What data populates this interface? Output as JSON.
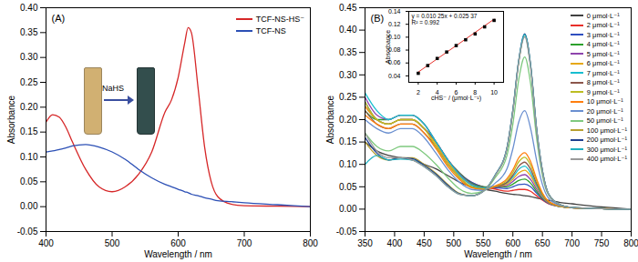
{
  "chart_data": [
    {
      "type": "line",
      "title": "(A)",
      "x_label": "Wavelength / nm",
      "y_label": "Absorbance",
      "xlim": [
        400,
        800
      ],
      "xticks": [
        400,
        500,
        600,
        700,
        800
      ],
      "ylim": [
        -0.05,
        0.4
      ],
      "yticks": [
        -0.05,
        {
          "value": 0,
          "label": "0.00"
        },
        0.05,
        {
          "value": 0.1,
          "label": "0.10"
        },
        0.15,
        {
          "value": 0.2,
          "label": "0.20"
        },
        0.25,
        {
          "value": 0.3,
          "label": "0.30"
        },
        0.35,
        {
          "value": 0.4,
          "label": "0.40"
        }
      ],
      "legend": "top-right",
      "grid": false,
      "annotations": [
        "NaHS"
      ],
      "x": [
        400,
        410,
        420,
        430,
        440,
        460,
        480,
        500,
        520,
        540,
        560,
        580,
        590,
        600,
        610,
        615,
        620,
        630,
        640,
        650,
        660,
        680,
        700,
        750,
        800
      ],
      "series": [
        {
          "name": "TCF-NS-HS⁻",
          "color": "#d62728",
          "values": [
            0.17,
            0.185,
            0.18,
            0.16,
            0.13,
            0.075,
            0.04,
            0.03,
            0.04,
            0.065,
            0.11,
            0.19,
            0.215,
            0.26,
            0.33,
            0.36,
            0.35,
            0.24,
            0.12,
            0.05,
            0.02,
            0.005,
            0.002,
            0.001,
            0
          ]
        },
        {
          "name": "TCF-NS",
          "color": "#2b4fb5",
          "values": [
            0.11,
            0.112,
            0.115,
            0.118,
            0.122,
            0.125,
            0.12,
            0.11,
            0.095,
            0.075,
            0.058,
            0.045,
            0.04,
            0.035,
            0.03,
            0.028,
            0.025,
            0.022,
            0.018,
            0.015,
            0.012,
            0.01,
            0.008,
            0.004,
            0
          ]
        }
      ]
    },
    {
      "type": "line",
      "title": "(B)",
      "x_label": "Wavelength / nm",
      "y_label": "Absorbance",
      "xlim": [
        350,
        800
      ],
      "xticks": [
        350,
        400,
        450,
        500,
        550,
        600,
        650,
        700,
        750,
        800
      ],
      "ylim": [
        -0.05,
        0.45
      ],
      "yticks": [
        -0.05,
        {
          "value": 0,
          "label": "0.00"
        },
        0.05,
        {
          "value": 0.1,
          "label": "0.10"
        },
        0.15,
        {
          "value": 0.2,
          "label": "0.20"
        },
        0.25,
        {
          "value": 0.3,
          "label": "0.30"
        },
        0.35,
        {
          "value": 0.4,
          "label": "0.40"
        },
        0.45
      ],
      "legend": "top-right",
      "grid": false,
      "x": [
        350,
        370,
        390,
        410,
        430,
        450,
        470,
        490,
        510,
        530,
        550,
        570,
        590,
        600,
        610,
        620,
        630,
        640,
        650,
        660,
        680,
        700,
        750,
        800
      ],
      "series": [
        {
          "name": "0 μmol·L⁻¹",
          "color": "#404040",
          "values": [
            0.15,
            0.13,
            0.12,
            0.115,
            0.11,
            0.1,
            0.09,
            0.075,
            0.06,
            0.05,
            0.045,
            0.04,
            0.035,
            0.033,
            0.032,
            0.03,
            0.028,
            0.025,
            0.022,
            0.02,
            0.015,
            0.012,
            0.005,
            0
          ]
        },
        {
          "name": "2 μmol·L⁻¹",
          "color": "#e8302a",
          "values": [
            0.23,
            0.2,
            0.19,
            0.2,
            0.2,
            0.18,
            0.15,
            0.11,
            0.08,
            0.06,
            0.05,
            0.045,
            0.04,
            0.042,
            0.044,
            0.044,
            0.04,
            0.03,
            0.02,
            0.012,
            0.006,
            0.003,
            0.001,
            0
          ]
        },
        {
          "name": "3 μmol·L⁻¹",
          "color": "#2f4fbf",
          "values": [
            0.24,
            0.2,
            0.19,
            0.2,
            0.2,
            0.18,
            0.15,
            0.11,
            0.08,
            0.06,
            0.05,
            0.048,
            0.046,
            0.05,
            0.055,
            0.056,
            0.05,
            0.036,
            0.022,
            0.013,
            0.006,
            0.003,
            0.001,
            0
          ]
        },
        {
          "name": "4 μmol·L⁻¹",
          "color": "#2ca02c",
          "values": [
            0.22,
            0.2,
            0.2,
            0.21,
            0.21,
            0.19,
            0.15,
            0.11,
            0.08,
            0.058,
            0.05,
            0.05,
            0.05,
            0.056,
            0.064,
            0.067,
            0.058,
            0.04,
            0.024,
            0.014,
            0.006,
            0.003,
            0.001,
            0
          ]
        },
        {
          "name": "5 μmol·L⁻¹",
          "color": "#8e44ad",
          "values": [
            0.25,
            0.21,
            0.2,
            0.21,
            0.21,
            0.19,
            0.15,
            0.11,
            0.078,
            0.056,
            0.048,
            0.05,
            0.053,
            0.062,
            0.073,
            0.077,
            0.066,
            0.045,
            0.026,
            0.014,
            0.006,
            0.003,
            0.001,
            0
          ]
        },
        {
          "name": "6 μmol·L⁻¹",
          "color": "#e6a817",
          "values": [
            0.23,
            0.2,
            0.19,
            0.2,
            0.2,
            0.18,
            0.145,
            0.105,
            0.074,
            0.054,
            0.047,
            0.05,
            0.056,
            0.067,
            0.081,
            0.087,
            0.074,
            0.05,
            0.028,
            0.015,
            0.006,
            0.003,
            0.001,
            0
          ]
        },
        {
          "name": "7 μmol·L⁻¹",
          "color": "#17becf",
          "values": [
            0.26,
            0.22,
            0.2,
            0.21,
            0.21,
            0.19,
            0.15,
            0.11,
            0.076,
            0.054,
            0.047,
            0.051,
            0.059,
            0.072,
            0.089,
            0.096,
            0.081,
            0.054,
            0.03,
            0.016,
            0.006,
            0.003,
            0.001,
            0
          ]
        },
        {
          "name": "8 μmol·L⁻¹",
          "color": "#8c564b",
          "values": [
            0.22,
            0.19,
            0.18,
            0.19,
            0.19,
            0.17,
            0.14,
            0.1,
            0.07,
            0.05,
            0.045,
            0.05,
            0.06,
            0.076,
            0.096,
            0.105,
            0.089,
            0.058,
            0.032,
            0.016,
            0.006,
            0.003,
            0.001,
            0
          ]
        },
        {
          "name": "9 μmol·L⁻¹",
          "color": "#bcbd22",
          "values": [
            0.24,
            0.2,
            0.19,
            0.2,
            0.2,
            0.18,
            0.14,
            0.1,
            0.07,
            0.05,
            0.045,
            0.051,
            0.064,
            0.082,
            0.106,
            0.116,
            0.098,
            0.064,
            0.034,
            0.017,
            0.006,
            0.003,
            0.001,
            0
          ]
        },
        {
          "name": "10 μmol·L⁻¹",
          "color": "#ff7f0e",
          "values": [
            0.21,
            0.19,
            0.18,
            0.19,
            0.19,
            0.17,
            0.135,
            0.095,
            0.066,
            0.048,
            0.044,
            0.052,
            0.068,
            0.088,
            0.115,
            0.126,
            0.106,
            0.068,
            0.036,
            0.018,
            0.007,
            0.003,
            0.001,
            0
          ]
        },
        {
          "name": "20 μmol·L⁻¹",
          "color": "#6a8fd0",
          "values": [
            0.2,
            0.18,
            0.17,
            0.18,
            0.18,
            0.16,
            0.125,
            0.088,
            0.06,
            0.044,
            0.042,
            0.058,
            0.09,
            0.135,
            0.195,
            0.22,
            0.18,
            0.11,
            0.055,
            0.025,
            0.008,
            0.004,
            0.001,
            0
          ]
        },
        {
          "name": "50 μmol·L⁻¹",
          "color": "#7fc97f",
          "values": [
            0.17,
            0.14,
            0.13,
            0.14,
            0.14,
            0.125,
            0.1,
            0.07,
            0.045,
            0.035,
            0.04,
            0.07,
            0.12,
            0.19,
            0.29,
            0.34,
            0.28,
            0.16,
            0.075,
            0.032,
            0.01,
            0.004,
            0.001,
            0
          ]
        },
        {
          "name": "100 μmol·L⁻¹",
          "color": "#b8a030",
          "values": [
            0.15,
            0.12,
            0.11,
            0.115,
            0.115,
            0.1,
            0.08,
            0.055,
            0.035,
            0.03,
            0.04,
            0.075,
            0.135,
            0.22,
            0.33,
            0.39,
            0.32,
            0.18,
            0.085,
            0.035,
            0.01,
            0.004,
            0.001,
            0
          ]
        },
        {
          "name": "200 μmol·L⁻¹",
          "color": "#1f3f8f",
          "values": [
            0.16,
            0.125,
            0.11,
            0.115,
            0.113,
            0.098,
            0.078,
            0.053,
            0.034,
            0.03,
            0.04,
            0.076,
            0.137,
            0.222,
            0.333,
            0.392,
            0.322,
            0.182,
            0.086,
            0.035,
            0.01,
            0.004,
            0.001,
            0
          ]
        },
        {
          "name": "300 μmol·L⁻¹",
          "color": "#20b0c0",
          "values": [
            0.1,
            0.12,
            0.11,
            0.112,
            0.11,
            0.095,
            0.075,
            0.05,
            0.033,
            0.03,
            0.04,
            0.076,
            0.136,
            0.22,
            0.332,
            0.39,
            0.32,
            0.18,
            0.085,
            0.035,
            0.01,
            0.004,
            0.001,
            0
          ]
        },
        {
          "name": "400 μmol·L⁻¹",
          "color": "#9a9a9a",
          "values": [
            0.17,
            0.13,
            0.115,
            0.115,
            0.11,
            0.095,
            0.075,
            0.05,
            0.033,
            0.03,
            0.04,
            0.075,
            0.135,
            0.218,
            0.33,
            0.385,
            0.316,
            0.178,
            0.084,
            0.034,
            0.01,
            0.004,
            0.001,
            0
          ]
        }
      ]
    },
    {
      "type": "scatter",
      "x_label": "cHS⁻ / (μmol·L⁻¹)",
      "y_label": "Absorbance",
      "xlim": [
        1,
        11
      ],
      "xticks": [
        2,
        4,
        6,
        8,
        10
      ],
      "ylim": [
        0.03,
        0.14
      ],
      "yticks": [
        0.04,
        0.06,
        0.08,
        {
          "value": 0.1,
          "label": "0.10"
        },
        0.12,
        0.14
      ],
      "grid": false,
      "annotations": [
        "y = 0.010 25x + 0.025 37",
        "R² = 0.992"
      ],
      "x": [
        2,
        3,
        4,
        5,
        6,
        7,
        8,
        9,
        10
      ],
      "values": [
        0.044,
        0.056,
        0.067,
        0.077,
        0.087,
        0.096,
        0.105,
        0.116,
        0.126
      ],
      "color": "#000000",
      "marker": "square",
      "fit_line": {
        "x": [
          2,
          10
        ],
        "values": [
          0.0459,
          0.1279
        ],
        "color": "#e8302a"
      }
    }
  ]
}
